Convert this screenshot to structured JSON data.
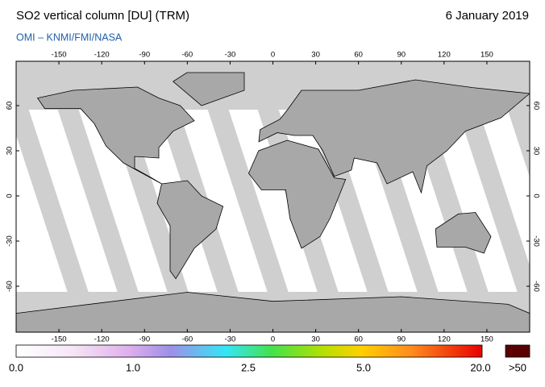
{
  "header": {
    "title": "SO2 vertical column [DU] (TRM)",
    "date": "6 January 2019",
    "source": "OMI  –  KNMI/FMI/NASA"
  },
  "map": {
    "lon_ticks": [
      -150,
      -120,
      -90,
      -60,
      -30,
      0,
      30,
      60,
      90,
      120,
      150
    ],
    "lat_ticks": [
      60,
      30,
      0,
      -30,
      -60
    ]
  },
  "colorbar": {
    "ticks": [
      {
        "value": 0,
        "label": "0.0"
      },
      {
        "value": 1,
        "label": "1.0"
      },
      {
        "value": 2.5,
        "label": "2.5"
      },
      {
        "value": 5,
        "label": "5.0"
      },
      {
        "value": 20,
        "label": "20.0"
      }
    ],
    "overflow": {
      "value": 50,
      "label": ">50"
    }
  }
}
